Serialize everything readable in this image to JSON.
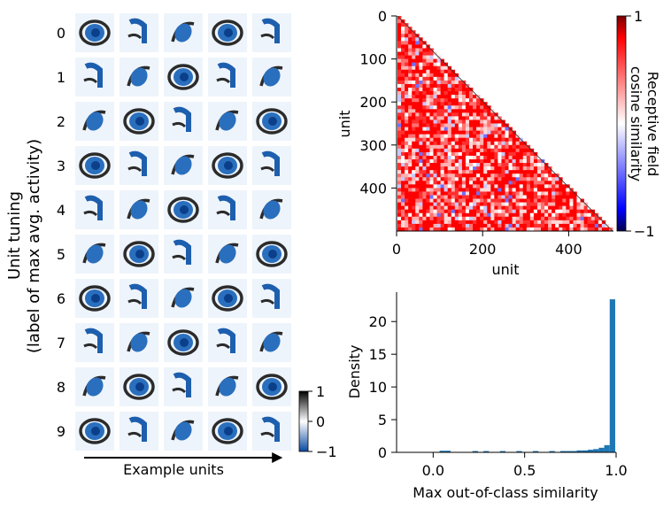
{
  "chart_data": [
    {
      "type": "heatmap",
      "title": "",
      "ylabel_line1": "Unit tuning",
      "ylabel_line2": "(label of max avg. activity)",
      "xlabel": "Example units",
      "row_labels": [
        "0",
        "1",
        "2",
        "3",
        "4",
        "5",
        "6",
        "7",
        "8",
        "9"
      ],
      "columns": 5,
      "colorbar": {
        "ticks": [
          "1",
          "0",
          "−1"
        ],
        "range": [
          -1,
          1
        ],
        "colormap": "blue-white-black"
      }
    },
    {
      "type": "heatmap",
      "title": "",
      "xlabel": "unit",
      "ylabel": "unit",
      "xticks": [
        "0",
        "200",
        "400"
      ],
      "yticks": [
        "0",
        "100",
        "200",
        "300",
        "400"
      ],
      "xlim": [
        0,
        500
      ],
      "ylim": [
        500,
        0
      ],
      "lower_triangular": true,
      "colorbar": {
        "label_line1": "Receptive field",
        "label_line2": "cosine similarity",
        "ticks": [
          "1",
          "−1"
        ],
        "range": [
          -1,
          1
        ],
        "colormap": "bwr"
      }
    },
    {
      "type": "bar",
      "title": "",
      "xlabel": "Max out-of-class similarity",
      "ylabel": "Density",
      "xticks": [
        "0.0",
        "0.5",
        "1.0"
      ],
      "yticks": [
        "0",
        "5",
        "10",
        "15",
        "20"
      ],
      "xlim": [
        -0.2,
        1.0
      ],
      "ylim": [
        0,
        24.5
      ],
      "bin_width": 0.03,
      "bins": [
        {
          "x": 0.05,
          "value": 0.25
        },
        {
          "x": 0.08,
          "value": 0.25
        },
        {
          "x": 0.23,
          "value": 0.2
        },
        {
          "x": 0.29,
          "value": 0.2
        },
        {
          "x": 0.38,
          "value": 0.2
        },
        {
          "x": 0.47,
          "value": 0.2
        },
        {
          "x": 0.56,
          "value": 0.2
        },
        {
          "x": 0.65,
          "value": 0.2
        },
        {
          "x": 0.71,
          "value": 0.2
        },
        {
          "x": 0.74,
          "value": 0.2
        },
        {
          "x": 0.77,
          "value": 0.2
        },
        {
          "x": 0.8,
          "value": 0.3
        },
        {
          "x": 0.83,
          "value": 0.3
        },
        {
          "x": 0.86,
          "value": 0.4
        },
        {
          "x": 0.89,
          "value": 0.5
        },
        {
          "x": 0.92,
          "value": 0.7
        },
        {
          "x": 0.95,
          "value": 1.1
        },
        {
          "x": 0.98,
          "value": 23.4
        }
      ],
      "color": "#1f77b4"
    }
  ]
}
